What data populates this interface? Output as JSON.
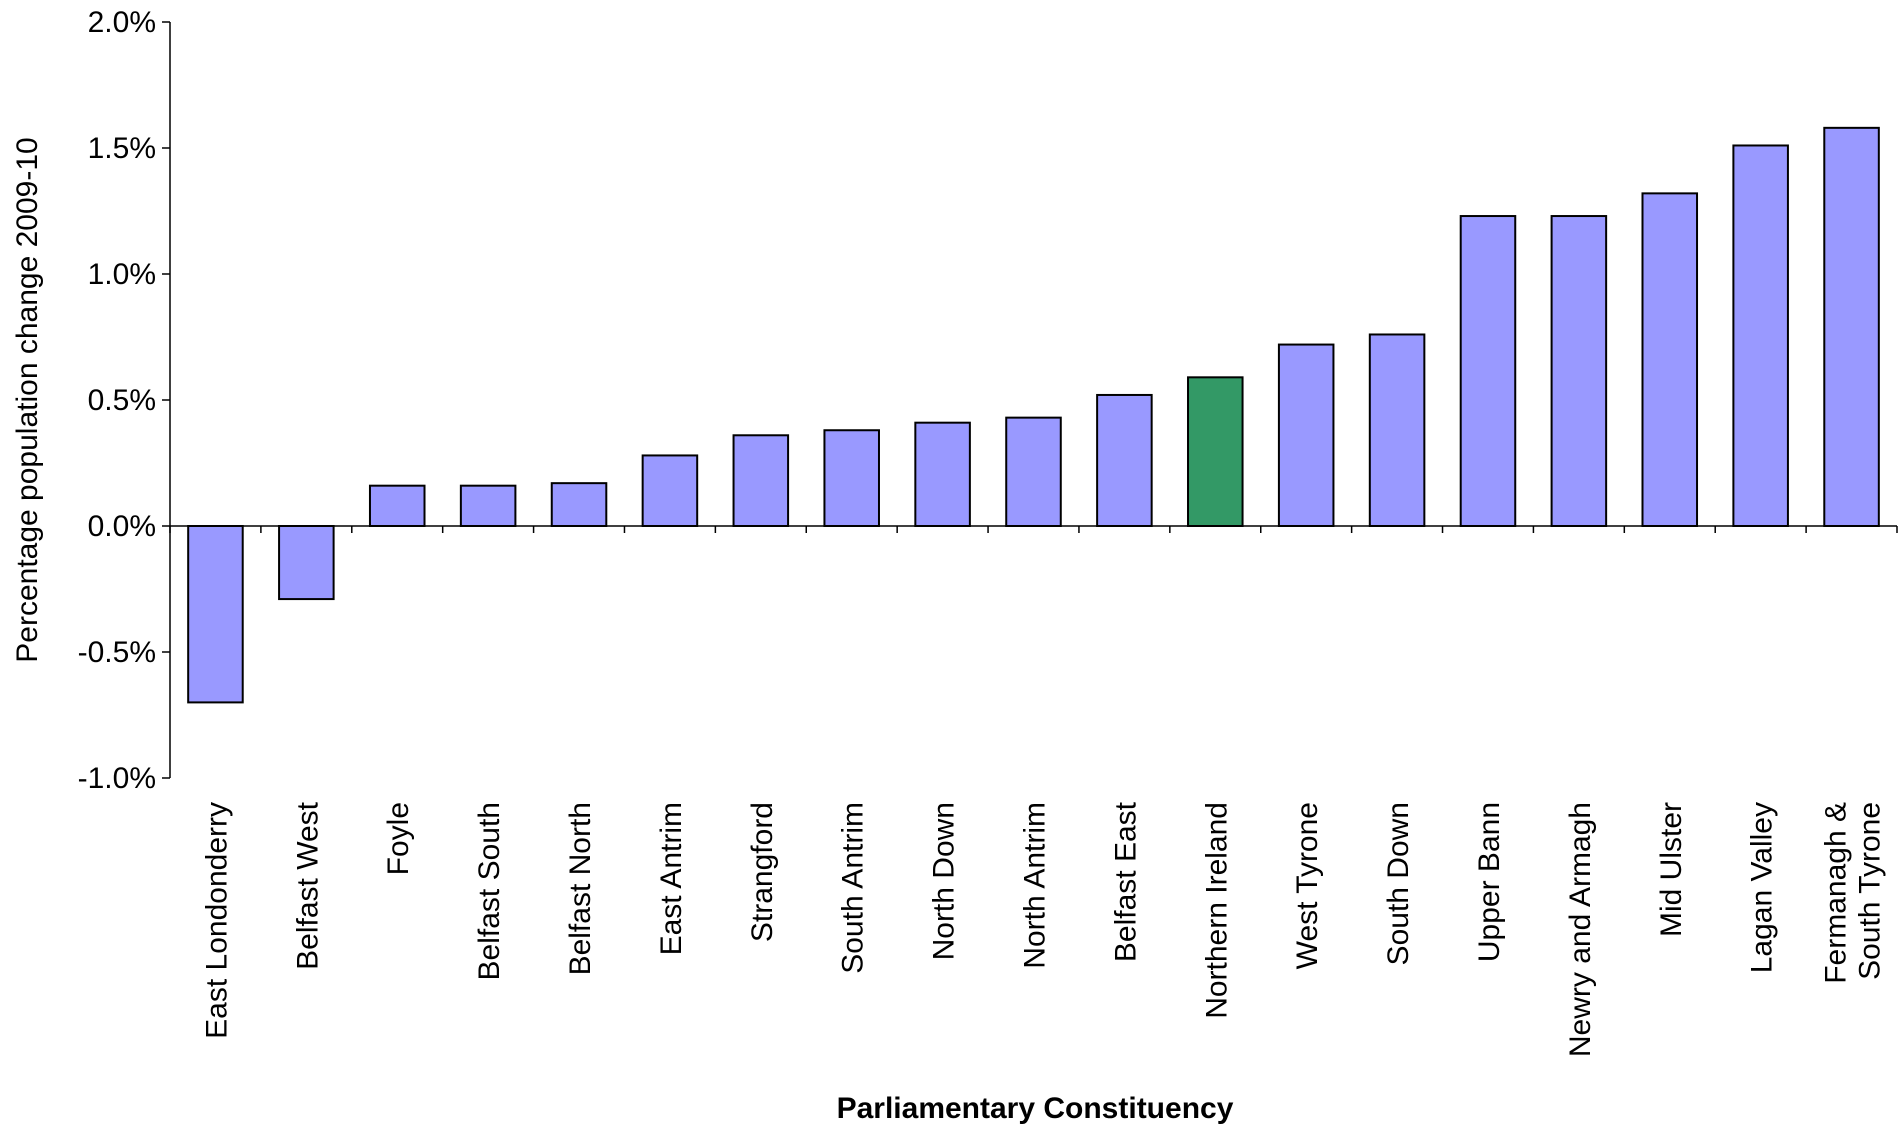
{
  "chart_data": {
    "type": "bar",
    "title": "",
    "xlabel": "Parliamentary Constituency",
    "ylabel": "Percentage population change 2009-10",
    "ylim": [
      -1.0,
      2.0
    ],
    "yticks": [
      -1.0,
      -0.5,
      0.0,
      0.5,
      1.0,
      1.5,
      2.0
    ],
    "ytick_labels": [
      "-1.0%",
      "-0.5%",
      "0.0%",
      "0.5%",
      "1.0%",
      "1.5%",
      "2.0%"
    ],
    "categories": [
      "East Londonderry",
      "Belfast West",
      "Foyle",
      "Belfast South",
      "Belfast North",
      "East Antrim",
      "Strangford",
      "South Antrim",
      "North Down",
      "North Antrim",
      "Belfast East",
      "Northern Ireland",
      "West Tyrone",
      "South Down",
      "Upper Bann",
      "Newry and Armagh",
      "Mid Ulster",
      "Lagan Valley",
      "Fermanagh & South Tyrone"
    ],
    "category_lines": [
      [
        "East Londonderry"
      ],
      [
        "Belfast West"
      ],
      [
        "Foyle"
      ],
      [
        "Belfast South"
      ],
      [
        "Belfast North"
      ],
      [
        "East Antrim"
      ],
      [
        "Strangford"
      ],
      [
        "South Antrim"
      ],
      [
        "North Down"
      ],
      [
        "North Antrim"
      ],
      [
        "Belfast East"
      ],
      [
        "Northern Ireland"
      ],
      [
        "West Tyrone"
      ],
      [
        "South Down"
      ],
      [
        "Upper Bann"
      ],
      [
        "Newry and Armagh"
      ],
      [
        "Mid Ulster"
      ],
      [
        "Lagan Valley"
      ],
      [
        "Fermanagh &",
        "South Tyrone"
      ]
    ],
    "values": [
      -0.7,
      -0.29,
      0.16,
      0.16,
      0.17,
      0.28,
      0.36,
      0.38,
      0.41,
      0.43,
      0.52,
      0.59,
      0.72,
      0.76,
      1.23,
      1.23,
      1.32,
      1.51,
      1.58
    ],
    "colors": {
      "default": "#9999ff",
      "highlight": "#339966",
      "highlight_category": "Northern Ireland",
      "stroke": "#000000"
    },
    "grid": false,
    "legend": "none"
  }
}
